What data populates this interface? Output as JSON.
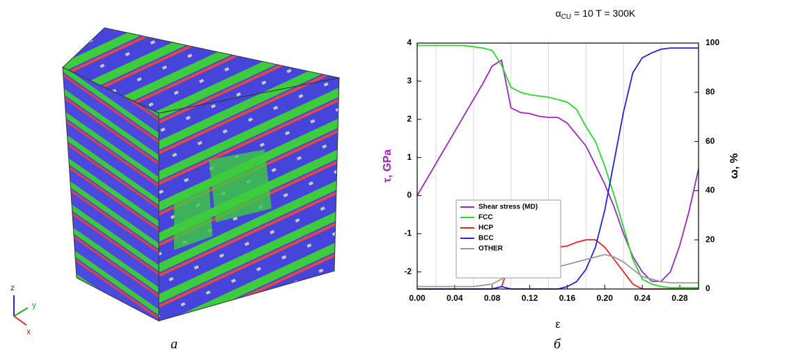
{
  "panel_a": {
    "axes": [
      "z",
      "y",
      "x"
    ],
    "caption": "а"
  },
  "chart_data": {
    "type": "line",
    "title": {
      "symbol": "α",
      "subscript": "CU",
      "text": "= 10   T = 300K"
    },
    "xlabel": "ε",
    "ylabel": "τ, GPa",
    "y2label": "ω, %",
    "caption": "б",
    "x": [
      0,
      0.01,
      0.02,
      0.03,
      0.04,
      0.05,
      0.06,
      0.07,
      0.08,
      0.09,
      0.1,
      0.11,
      0.12,
      0.13,
      0.14,
      0.15,
      0.16,
      0.17,
      0.18,
      0.19,
      0.2,
      0.21,
      0.22,
      0.23,
      0.24,
      0.25,
      0.26,
      0.27,
      0.28,
      0.29,
      0.3
    ],
    "xlim": [
      0,
      0.3
    ],
    "xticks": [
      {
        "value": 0,
        "label": "0.00"
      },
      {
        "value": 0.04,
        "label": "0.04"
      },
      {
        "value": 0.08,
        "label": "0.08"
      },
      {
        "value": 0.12,
        "label": "0.12"
      },
      {
        "value": 0.16,
        "label": "0.16"
      },
      {
        "value": 0.2,
        "label": "0.20"
      },
      {
        "value": 0.24,
        "label": "0.24"
      },
      {
        "value": 0.28,
        "label": "0.28"
      }
    ],
    "xgrid": [
      0.02,
      0.06,
      0.1,
      0.14,
      0.18,
      0.22,
      0.26
    ],
    "ylim": [
      -2.45,
      4
    ],
    "yticks": [
      -2,
      -1,
      0,
      1,
      2,
      3,
      4
    ],
    "y2lim": [
      0,
      100
    ],
    "y2ticks": [
      0,
      20,
      40,
      60,
      80,
      100
    ],
    "ylabel_color": "#a020c8",
    "series": [
      {
        "name": "Shear stress (MD)",
        "color": "#9b27c7",
        "values": [
          0,
          0.42,
          0.84,
          1.26,
          1.68,
          2.1,
          2.52,
          2.94,
          3.4,
          3.55,
          2.3,
          2.18,
          2.15,
          2.08,
          2.05,
          2.05,
          1.9,
          1.6,
          1.3,
          0.8,
          0.3,
          -0.3,
          -1.0,
          -1.6,
          -2.0,
          -2.25,
          -2.25,
          -2.0,
          -1.3,
          -0.4,
          0.7
        ]
      },
      {
        "name": "FCC",
        "color": "#22dd22",
        "axis": "y2",
        "values": [
          99,
          99,
          99,
          99,
          99,
          99,
          98.5,
          98,
          97,
          91,
          82,
          80,
          79,
          78.5,
          78,
          77,
          76,
          73,
          66,
          60,
          50,
          38,
          25,
          12,
          4,
          2,
          1,
          0.5,
          0.5,
          0.5,
          0.5
        ]
      },
      {
        "name": "HCP",
        "color": "#ee2222",
        "axis": "y2",
        "values": [
          0,
          0,
          0,
          0,
          0,
          0,
          0,
          0,
          0,
          1,
          12,
          15,
          16,
          16.5,
          17,
          17,
          17.5,
          19,
          20,
          20,
          17,
          12,
          7,
          2,
          0,
          0,
          0,
          0,
          0,
          0,
          0
        ]
      },
      {
        "name": "BCC",
        "color": "#2020ee",
        "axis": "y2",
        "values": [
          0,
          0,
          0,
          0,
          0,
          0,
          0,
          0,
          0,
          1,
          0,
          0,
          0,
          0,
          0,
          0,
          1,
          3,
          8,
          17,
          32,
          52,
          72,
          88,
          94,
          96,
          97.5,
          98,
          98,
          98,
          98
        ]
      },
      {
        "name": "OTHER",
        "color": "#999999",
        "axis": "y2",
        "values": [
          1,
          1,
          1,
          1,
          1,
          1,
          1,
          1.5,
          2,
          4,
          7,
          8,
          8,
          8.5,
          9,
          9,
          10,
          11,
          12,
          13,
          14,
          13,
          11,
          8,
          5,
          4,
          3,
          2.5,
          2.5,
          2.5,
          2.5
        ]
      }
    ]
  }
}
